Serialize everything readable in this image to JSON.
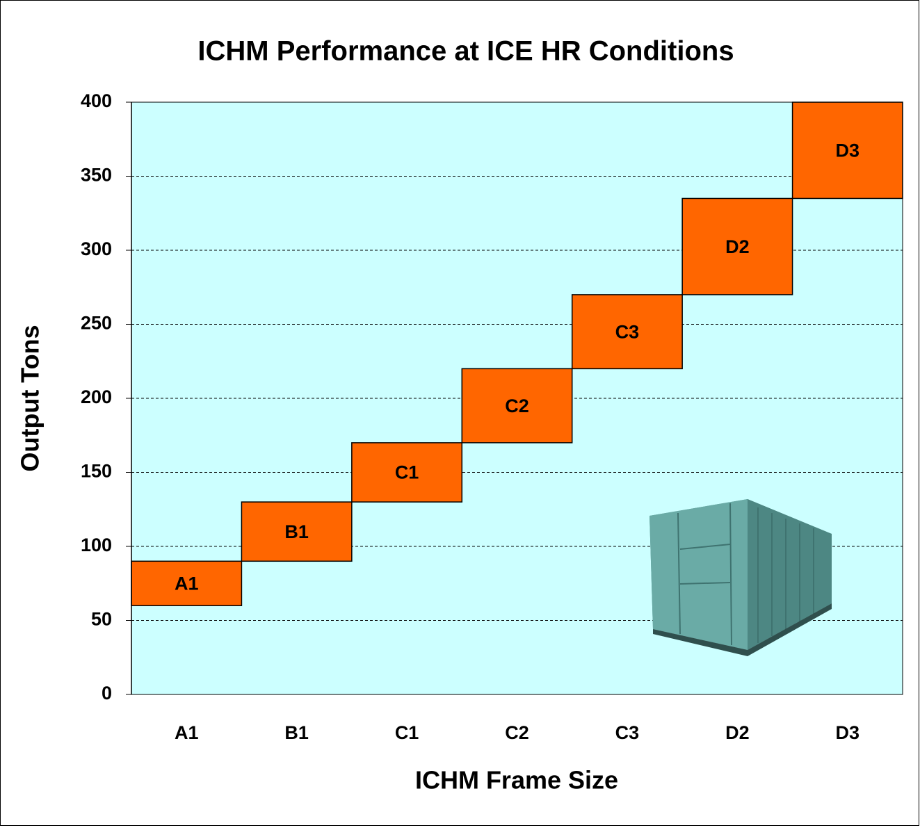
{
  "chart_data": {
    "type": "floating-bar",
    "title": "ICHM Performance at ICE HR Conditions",
    "x_label": "ICHM Frame Size",
    "y_label": "Output Tons",
    "categories": [
      "A1",
      "B1",
      "C1",
      "C2",
      "C3",
      "D2",
      "D3"
    ],
    "low": [
      60,
      90,
      130,
      170,
      220,
      270,
      335
    ],
    "high": [
      90,
      130,
      170,
      220,
      270,
      335,
      400
    ],
    "color": "#ff6600",
    "ylim": [
      0,
      400
    ],
    "yticks": [
      0,
      50,
      100,
      150,
      200,
      250,
      300,
      350,
      400
    ],
    "grid": true
  }
}
